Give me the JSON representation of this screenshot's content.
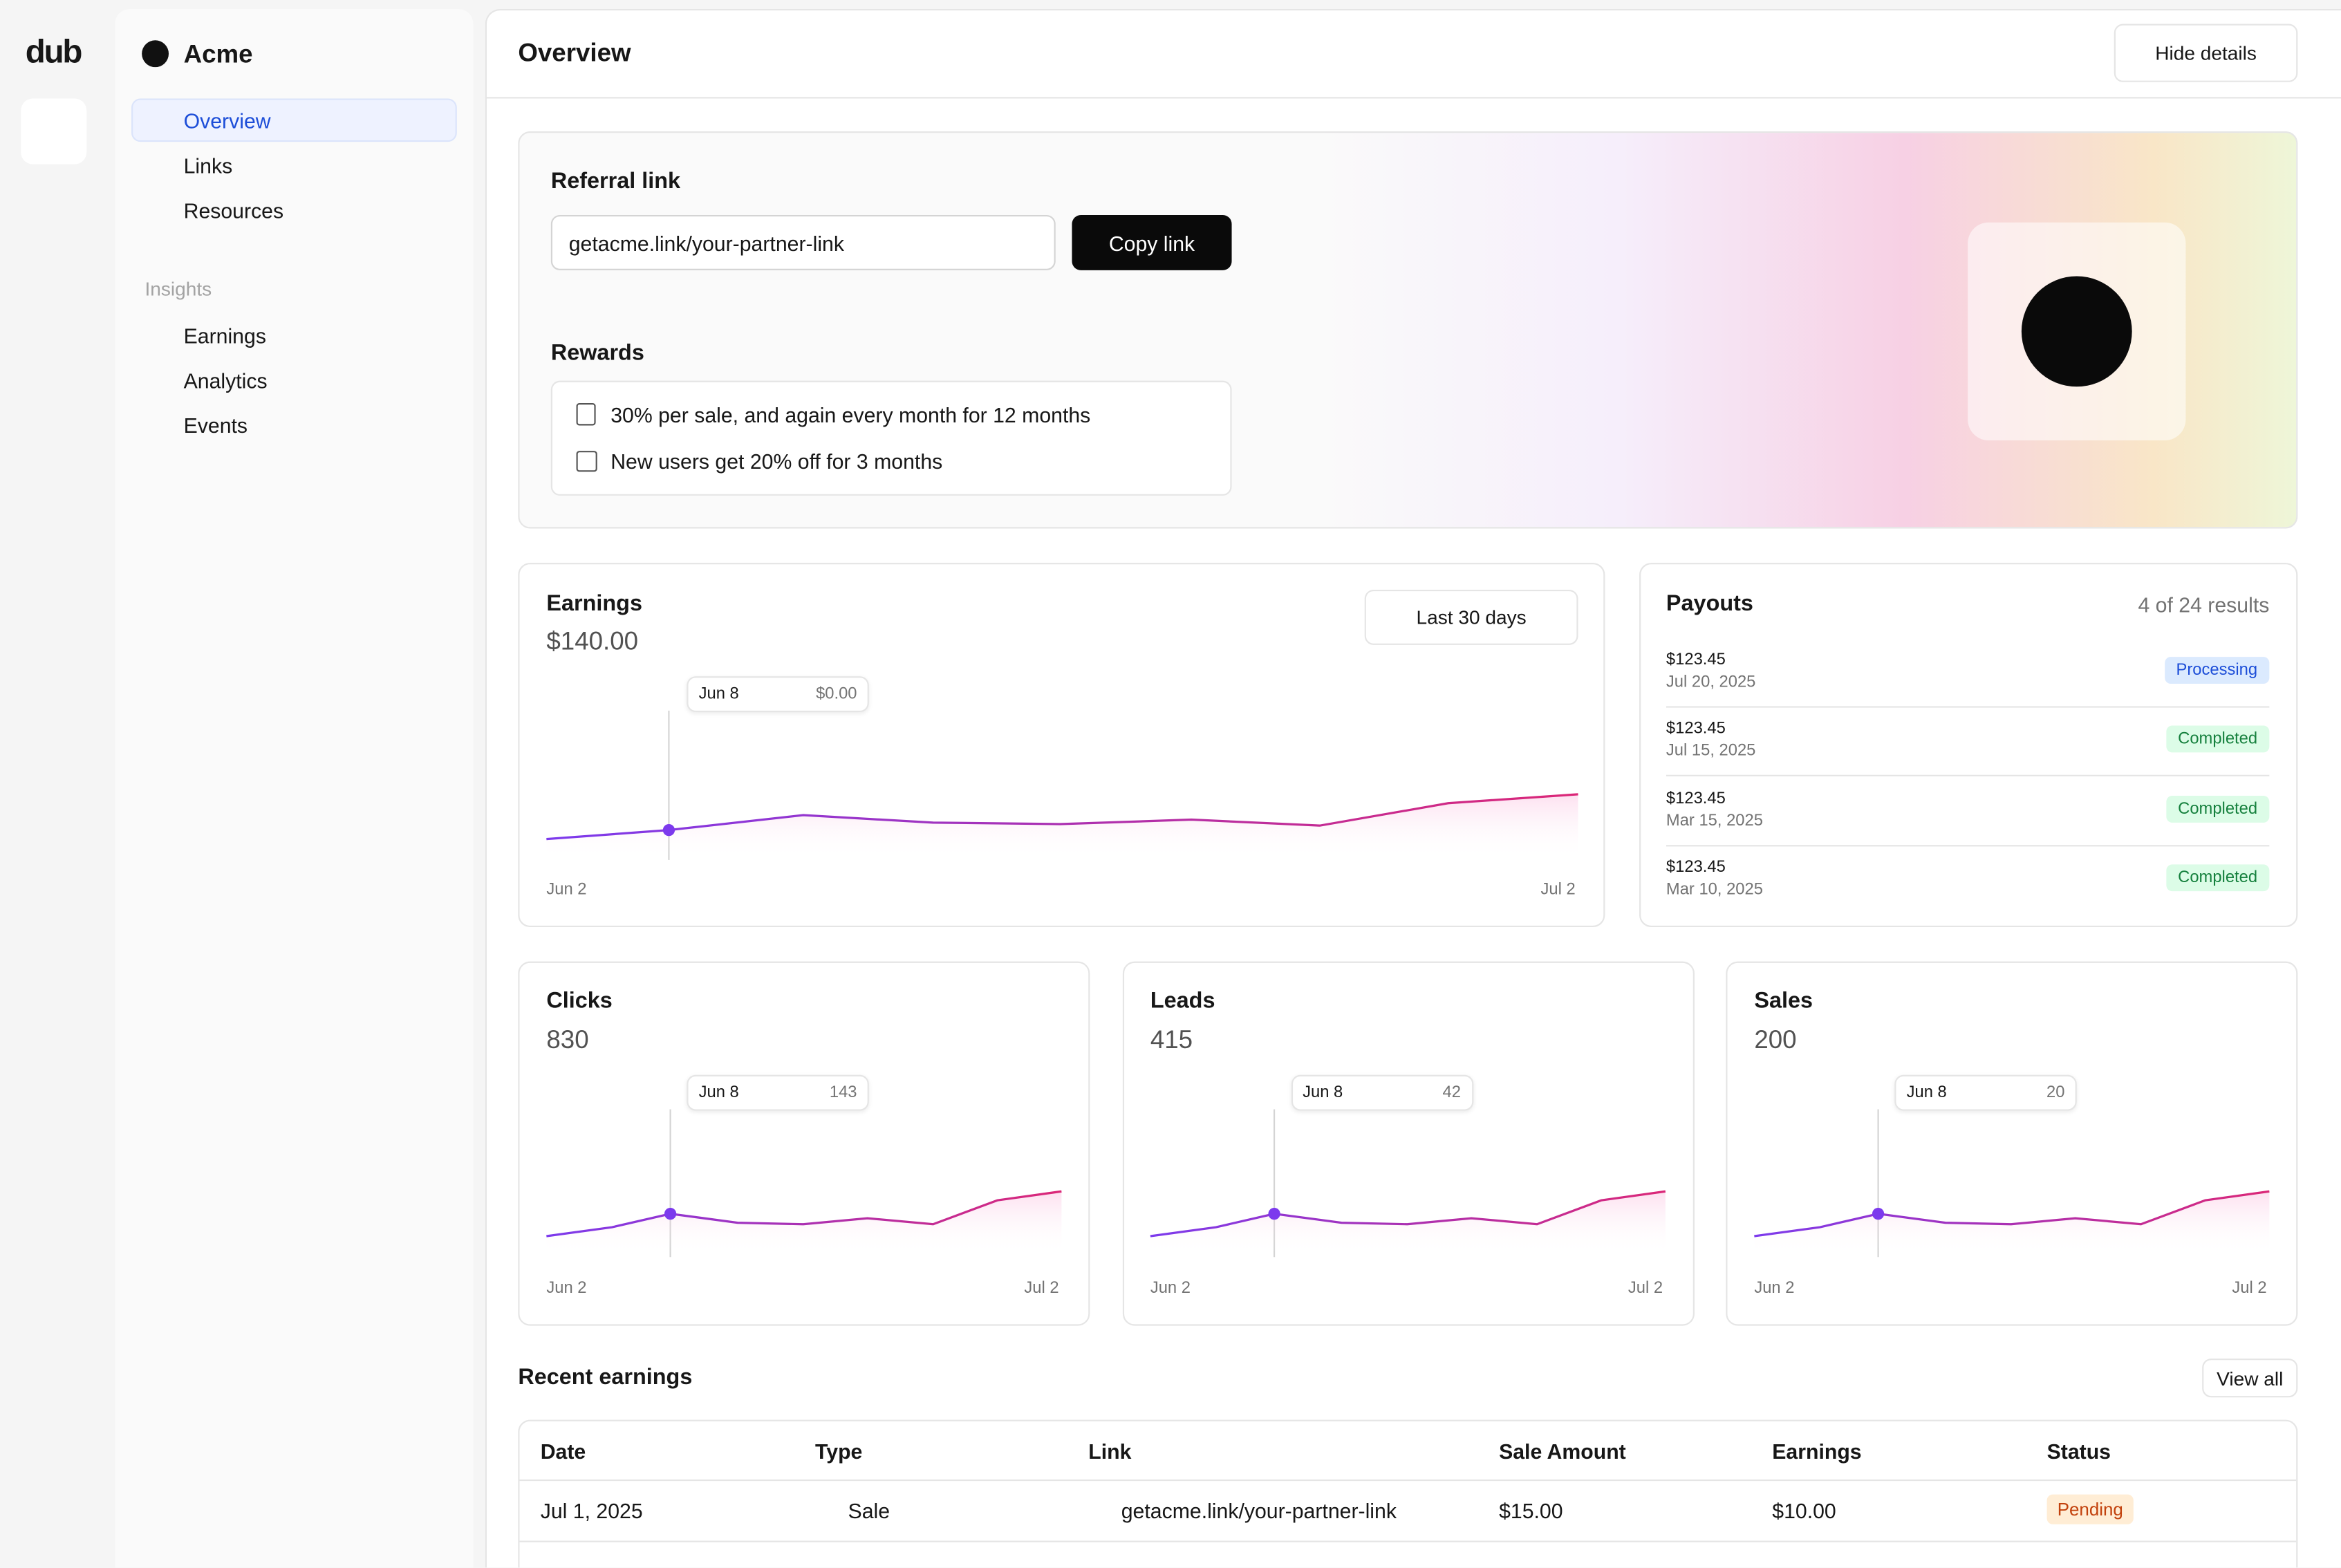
{
  "sidebar": {
    "logo": "dub",
    "workspace": "Acme",
    "nav": [
      "Overview",
      "Links",
      "Resources"
    ],
    "section": "Insights",
    "insights": [
      "Earnings",
      "Analytics",
      "Events"
    ]
  },
  "header": {
    "title": "Overview",
    "button": "Hide details"
  },
  "referral": {
    "title": "Referral link",
    "link": "getacme.link/your-partner-link",
    "copy": "Copy link",
    "rewards_title": "Rewards",
    "rewards": [
      "30% per sale, and again every month for 12 months",
      "New users get 20% off for 3 months"
    ]
  },
  "earnings": {
    "title": "Earnings",
    "total": "$140.00",
    "range": "Last 30 days",
    "tooltip_date": "Jun 8",
    "tooltip_value": "$0.00",
    "x_start": "Jun 2",
    "x_end": "Jul 2"
  },
  "payouts": {
    "title": "Payouts",
    "count": "4 of 24 results",
    "rows": [
      {
        "amount": "$123.45",
        "date": "Jul 20, 2025",
        "status": "Processing"
      },
      {
        "amount": "$123.45",
        "date": "Jul 15, 2025",
        "status": "Completed"
      },
      {
        "amount": "$123.45",
        "date": "Mar 15, 2025",
        "status": "Completed"
      },
      {
        "amount": "$123.45",
        "date": "Mar 10, 2025",
        "status": "Completed"
      }
    ]
  },
  "stats": [
    {
      "title": "Clicks",
      "total": "830",
      "tooltip_date": "Jun 8",
      "tooltip_value": "143",
      "x_start": "Jun 2",
      "x_end": "Jul 2"
    },
    {
      "title": "Leads",
      "total": "415",
      "tooltip_date": "Jun 8",
      "tooltip_value": "42",
      "x_start": "Jun 2",
      "x_end": "Jul 2"
    },
    {
      "title": "Sales",
      "total": "200",
      "tooltip_date": "Jun 8",
      "tooltip_value": "20",
      "x_start": "Jun 2",
      "x_end": "Jul 2"
    }
  ],
  "recent": {
    "title": "Recent earnings",
    "view_all": "View all",
    "columns": [
      "Date",
      "Type",
      "Link",
      "Sale Amount",
      "Earnings",
      "Status"
    ],
    "rows": [
      [
        "Jul 1, 2025",
        "Sale",
        "getacme.link/your-partner-link",
        "$15.00",
        "$10.00",
        "Pending"
      ]
    ]
  }
}
